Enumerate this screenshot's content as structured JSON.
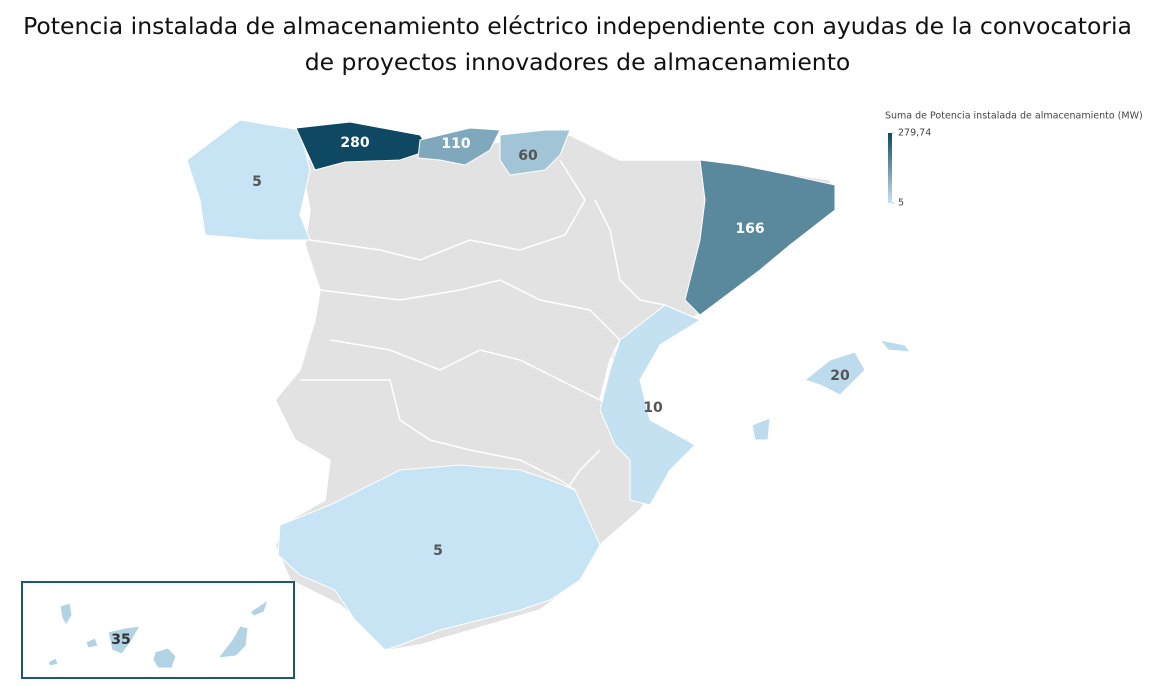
{
  "chart_data": {
    "type": "map",
    "title": "Potencia instalada de almacenamiento eléctrico independiente con ayudas de la convocatoria de proyectos innovadores de almacenamiento",
    "legend_title": "Suma de Potencia instalada de almacenamiento (MW)",
    "values": [
      5,
      279.74,
      110,
      60,
      166,
      10,
      20,
      5,
      35
    ],
    "value_labels": [
      "5",
      "280",
      "110",
      "60",
      "166",
      "10",
      "20",
      "5",
      "35"
    ],
    "clim": [
      5,
      279.74
    ],
    "cticks": [
      {
        "value": 279.74,
        "label": "279,74"
      },
      5
    ],
    "colors": [
      "#c6e4f4",
      "#0e4862"
    ]
  }
}
